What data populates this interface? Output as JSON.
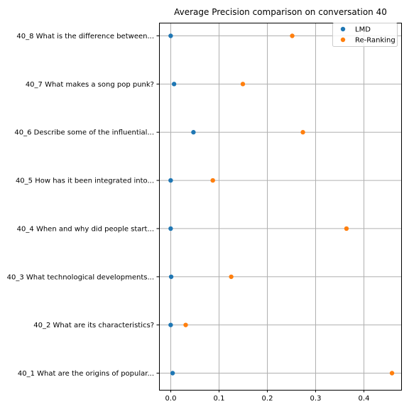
{
  "chart_data": {
    "type": "scatter",
    "title": "Average Precision comparison on conversation 40",
    "xlabel": "",
    "ylabel": "",
    "xlim": [
      -0.023,
      0.477
    ],
    "xticks": [
      0.0,
      0.1,
      0.2,
      0.3,
      0.4
    ],
    "xtick_labels": [
      "0.0",
      "0.1",
      "0.2",
      "0.3",
      "0.4"
    ],
    "grid": true,
    "legend_position": "top-right",
    "categories": [
      "40_1 What are the origins of popular...",
      "40_2 What are its characteristics?",
      "40_3 What technological developments...",
      "40_4 When and why did people start...",
      "40_5 How has it been integrated into...",
      "40_6 Describe some of the influential...",
      "40_7 What makes a song pop punk?",
      "40_8 What is the difference between..."
    ],
    "series": [
      {
        "name": "LMD",
        "color": "#1f77b4",
        "values": [
          0.005,
          0.001,
          0.002,
          0.001,
          0.001,
          0.048,
          0.008,
          0.001
        ]
      },
      {
        "name": "Re-Ranking",
        "color": "#ff7f0e",
        "values": [
          0.458,
          0.032,
          0.126,
          0.364,
          0.088,
          0.274,
          0.15,
          0.252
        ]
      }
    ]
  }
}
